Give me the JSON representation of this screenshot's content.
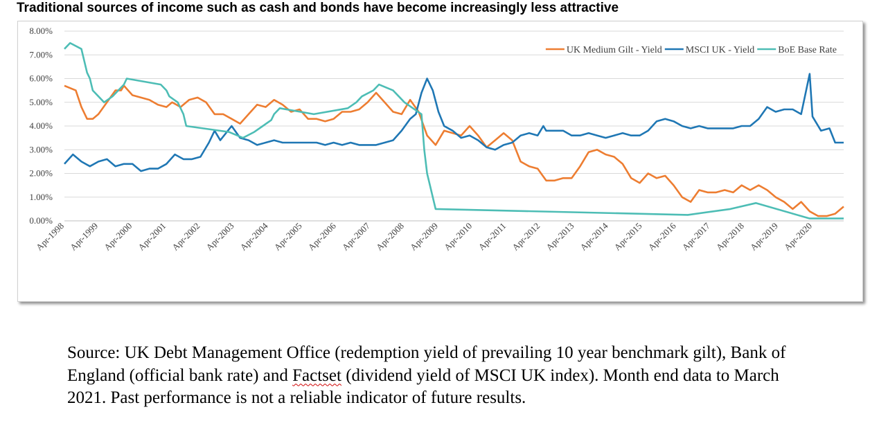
{
  "title": "Traditional sources of income such as cash and bonds have become increasingly less attractive",
  "source_note": {
    "before": "Source: UK Debt Management Office (redemption yield of prevailing 10 year benchmark gilt), Bank of England (official bank rate) and ",
    "flagged_word": "Factset",
    "after": " (dividend yield of MSCI UK index). Month end data to March 2021. Past performance is not a reliable indicator of future results."
  },
  "chart_data": {
    "type": "line",
    "title": "",
    "xlabel": "",
    "ylabel": "",
    "ylim": [
      0,
      8
    ],
    "y_ticks": [
      0,
      1,
      2,
      3,
      4,
      5,
      6,
      7,
      8
    ],
    "y_tick_labels": [
      "0.00%",
      "1.00%",
      "2.00%",
      "3.00%",
      "4.00%",
      "5.00%",
      "6.00%",
      "7.00%",
      "8.00%"
    ],
    "x_range": [
      "1998-04",
      "2021-03"
    ],
    "x_tick_labels": [
      "Apr-1998",
      "Apr-1999",
      "Apr-2000",
      "Apr-2001",
      "Apr-2002",
      "Apr-2003",
      "Apr-2004",
      "Apr-2005",
      "Apr-2006",
      "Apr-2007",
      "Apr-2008",
      "Apr-2009",
      "Apr-2010",
      "Apr-2011",
      "Apr-2012",
      "Apr-2013",
      "Apr-2014",
      "Apr-2015",
      "Apr-2016",
      "Apr-2017",
      "Apr-2018",
      "Apr-2019",
      "Apr-2020"
    ],
    "grid": "horizontal",
    "legend_position": "top-right",
    "series": [
      {
        "name": "UK Medium Gilt - Yield",
        "color": "#ED7D31",
        "points": [
          [
            "1998-04",
            5.7
          ],
          [
            "1998-06",
            5.6
          ],
          [
            "1998-08",
            5.5
          ],
          [
            "1998-10",
            4.8
          ],
          [
            "1998-12",
            4.3
          ],
          [
            "1999-02",
            4.3
          ],
          [
            "1999-04",
            4.5
          ],
          [
            "1999-07",
            5.0
          ],
          [
            "1999-10",
            5.5
          ],
          [
            "1999-12",
            5.5
          ],
          [
            "2000-01",
            5.7
          ],
          [
            "2000-04",
            5.3
          ],
          [
            "2000-07",
            5.2
          ],
          [
            "2000-10",
            5.1
          ],
          [
            "2001-01",
            4.9
          ],
          [
            "2001-04",
            4.8
          ],
          [
            "2001-06",
            5.0
          ],
          [
            "2001-09",
            4.8
          ],
          [
            "2001-12",
            5.1
          ],
          [
            "2002-03",
            5.2
          ],
          [
            "2002-06",
            5.0
          ],
          [
            "2002-09",
            4.5
          ],
          [
            "2002-12",
            4.5
          ],
          [
            "2003-03",
            4.3
          ],
          [
            "2003-06",
            4.1
          ],
          [
            "2003-09",
            4.5
          ],
          [
            "2003-12",
            4.9
          ],
          [
            "2004-03",
            4.8
          ],
          [
            "2004-06",
            5.1
          ],
          [
            "2004-09",
            4.9
          ],
          [
            "2004-12",
            4.6
          ],
          [
            "2005-03",
            4.7
          ],
          [
            "2005-06",
            4.3
          ],
          [
            "2005-09",
            4.3
          ],
          [
            "2005-12",
            4.2
          ],
          [
            "2006-03",
            4.3
          ],
          [
            "2006-06",
            4.6
          ],
          [
            "2006-09",
            4.6
          ],
          [
            "2006-12",
            4.7
          ],
          [
            "2007-03",
            5.0
          ],
          [
            "2007-06",
            5.4
          ],
          [
            "2007-09",
            5.0
          ],
          [
            "2007-12",
            4.6
          ],
          [
            "2008-03",
            4.5
          ],
          [
            "2008-06",
            5.1
          ],
          [
            "2008-09",
            4.6
          ],
          [
            "2008-12",
            3.6
          ],
          [
            "2009-03",
            3.2
          ],
          [
            "2009-06",
            3.8
          ],
          [
            "2009-09",
            3.7
          ],
          [
            "2009-12",
            3.6
          ],
          [
            "2010-03",
            4.0
          ],
          [
            "2010-06",
            3.6
          ],
          [
            "2010-09",
            3.1
          ],
          [
            "2010-12",
            3.4
          ],
          [
            "2011-03",
            3.7
          ],
          [
            "2011-06",
            3.4
          ],
          [
            "2011-09",
            2.5
          ],
          [
            "2011-12",
            2.3
          ],
          [
            "2012-03",
            2.2
          ],
          [
            "2012-06",
            1.7
          ],
          [
            "2012-09",
            1.7
          ],
          [
            "2012-12",
            1.8
          ],
          [
            "2013-03",
            1.8
          ],
          [
            "2013-06",
            2.3
          ],
          [
            "2013-09",
            2.9
          ],
          [
            "2013-12",
            3.0
          ],
          [
            "2014-03",
            2.8
          ],
          [
            "2014-06",
            2.7
          ],
          [
            "2014-09",
            2.4
          ],
          [
            "2014-12",
            1.8
          ],
          [
            "2015-03",
            1.6
          ],
          [
            "2015-06",
            2.0
          ],
          [
            "2015-09",
            1.8
          ],
          [
            "2015-12",
            1.9
          ],
          [
            "2016-03",
            1.5
          ],
          [
            "2016-06",
            1.0
          ],
          [
            "2016-09",
            0.8
          ],
          [
            "2016-12",
            1.3
          ],
          [
            "2017-03",
            1.2
          ],
          [
            "2017-06",
            1.2
          ],
          [
            "2017-09",
            1.3
          ],
          [
            "2017-12",
            1.2
          ],
          [
            "2018-03",
            1.5
          ],
          [
            "2018-06",
            1.3
          ],
          [
            "2018-09",
            1.5
          ],
          [
            "2018-12",
            1.3
          ],
          [
            "2019-03",
            1.0
          ],
          [
            "2019-06",
            0.8
          ],
          [
            "2019-09",
            0.5
          ],
          [
            "2019-12",
            0.8
          ],
          [
            "2020-03",
            0.4
          ],
          [
            "2020-06",
            0.2
          ],
          [
            "2020-09",
            0.2
          ],
          [
            "2020-12",
            0.3
          ],
          [
            "2021-03",
            0.6
          ]
        ]
      },
      {
        "name": "MSCI UK - Yield",
        "color": "#1F77B4",
        "points": [
          [
            "1998-04",
            2.4
          ],
          [
            "1998-07",
            2.8
          ],
          [
            "1998-10",
            2.5
          ],
          [
            "1999-01",
            2.3
          ],
          [
            "1999-04",
            2.5
          ],
          [
            "1999-07",
            2.6
          ],
          [
            "1999-10",
            2.3
          ],
          [
            "2000-01",
            2.4
          ],
          [
            "2000-04",
            2.4
          ],
          [
            "2000-07",
            2.1
          ],
          [
            "2000-10",
            2.2
          ],
          [
            "2001-01",
            2.2
          ],
          [
            "2001-04",
            2.4
          ],
          [
            "2001-07",
            2.8
          ],
          [
            "2001-10",
            2.6
          ],
          [
            "2002-01",
            2.6
          ],
          [
            "2002-04",
            2.7
          ],
          [
            "2002-07",
            3.3
          ],
          [
            "2002-09",
            3.8
          ],
          [
            "2002-11",
            3.4
          ],
          [
            "2003-03",
            4.0
          ],
          [
            "2003-06",
            3.5
          ],
          [
            "2003-09",
            3.4
          ],
          [
            "2003-12",
            3.2
          ],
          [
            "2004-03",
            3.3
          ],
          [
            "2004-06",
            3.4
          ],
          [
            "2004-09",
            3.3
          ],
          [
            "2004-12",
            3.3
          ],
          [
            "2005-03",
            3.3
          ],
          [
            "2005-06",
            3.3
          ],
          [
            "2005-09",
            3.3
          ],
          [
            "2005-12",
            3.2
          ],
          [
            "2006-03",
            3.3
          ],
          [
            "2006-06",
            3.2
          ],
          [
            "2006-09",
            3.3
          ],
          [
            "2006-12",
            3.2
          ],
          [
            "2007-03",
            3.2
          ],
          [
            "2007-06",
            3.2
          ],
          [
            "2007-09",
            3.3
          ],
          [
            "2007-12",
            3.4
          ],
          [
            "2008-03",
            3.8
          ],
          [
            "2008-06",
            4.3
          ],
          [
            "2008-08",
            4.5
          ],
          [
            "2008-10",
            5.4
          ],
          [
            "2008-12",
            6.0
          ],
          [
            "2009-02",
            5.5
          ],
          [
            "2009-04",
            4.6
          ],
          [
            "2009-06",
            4.0
          ],
          [
            "2009-09",
            3.8
          ],
          [
            "2009-12",
            3.5
          ],
          [
            "2010-03",
            3.6
          ],
          [
            "2010-06",
            3.4
          ],
          [
            "2010-09",
            3.1
          ],
          [
            "2010-12",
            3.0
          ],
          [
            "2011-03",
            3.2
          ],
          [
            "2011-06",
            3.3
          ],
          [
            "2011-09",
            3.6
          ],
          [
            "2011-12",
            3.7
          ],
          [
            "2012-03",
            3.6
          ],
          [
            "2012-05",
            4.0
          ],
          [
            "2012-06",
            3.8
          ],
          [
            "2012-09",
            3.8
          ],
          [
            "2012-12",
            3.8
          ],
          [
            "2013-03",
            3.6
          ],
          [
            "2013-06",
            3.6
          ],
          [
            "2013-09",
            3.7
          ],
          [
            "2013-12",
            3.6
          ],
          [
            "2014-03",
            3.5
          ],
          [
            "2014-06",
            3.6
          ],
          [
            "2014-09",
            3.7
          ],
          [
            "2014-12",
            3.6
          ],
          [
            "2015-03",
            3.6
          ],
          [
            "2015-06",
            3.8
          ],
          [
            "2015-09",
            4.2
          ],
          [
            "2015-12",
            4.3
          ],
          [
            "2016-03",
            4.2
          ],
          [
            "2016-06",
            4.0
          ],
          [
            "2016-09",
            3.9
          ],
          [
            "2016-12",
            4.0
          ],
          [
            "2017-03",
            3.9
          ],
          [
            "2017-06",
            3.9
          ],
          [
            "2017-09",
            3.9
          ],
          [
            "2017-12",
            3.9
          ],
          [
            "2018-03",
            4.0
          ],
          [
            "2018-06",
            4.0
          ],
          [
            "2018-09",
            4.3
          ],
          [
            "2018-12",
            4.8
          ],
          [
            "2019-03",
            4.6
          ],
          [
            "2019-06",
            4.7
          ],
          [
            "2019-09",
            4.7
          ],
          [
            "2019-12",
            4.5
          ],
          [
            "2020-03",
            6.2
          ],
          [
            "2020-04",
            4.4
          ],
          [
            "2020-07",
            3.8
          ],
          [
            "2020-10",
            3.9
          ],
          [
            "2020-12",
            3.3
          ],
          [
            "2021-03",
            3.3
          ]
        ]
      },
      {
        "name": "BoE Base Rate",
        "color": "#4DBDB5",
        "points": [
          [
            "1998-04",
            7.25
          ],
          [
            "1998-06",
            7.5
          ],
          [
            "1998-10",
            7.25
          ],
          [
            "1998-11",
            6.75
          ],
          [
            "1998-12",
            6.25
          ],
          [
            "1999-01",
            6.0
          ],
          [
            "1999-02",
            5.5
          ],
          [
            "1999-04",
            5.25
          ],
          [
            "1999-06",
            5.0
          ],
          [
            "1999-09",
            5.25
          ],
          [
            "1999-11",
            5.5
          ],
          [
            "2000-01",
            5.75
          ],
          [
            "2000-02",
            6.0
          ],
          [
            "2001-02",
            5.75
          ],
          [
            "2001-04",
            5.5
          ],
          [
            "2001-05",
            5.25
          ],
          [
            "2001-08",
            5.0
          ],
          [
            "2001-09",
            4.75
          ],
          [
            "2001-10",
            4.5
          ],
          [
            "2001-11",
            4.0
          ],
          [
            "2003-02",
            3.75
          ],
          [
            "2003-07",
            3.5
          ],
          [
            "2003-11",
            3.75
          ],
          [
            "2004-02",
            4.0
          ],
          [
            "2004-05",
            4.25
          ],
          [
            "2004-06",
            4.5
          ],
          [
            "2004-08",
            4.75
          ],
          [
            "2005-08",
            4.5
          ],
          [
            "2006-08",
            4.75
          ],
          [
            "2006-11",
            5.0
          ],
          [
            "2007-01",
            5.25
          ],
          [
            "2007-05",
            5.5
          ],
          [
            "2007-07",
            5.75
          ],
          [
            "2007-12",
            5.5
          ],
          [
            "2008-02",
            5.25
          ],
          [
            "2008-04",
            5.0
          ],
          [
            "2008-10",
            4.5
          ],
          [
            "2008-11",
            3.0
          ],
          [
            "2008-12",
            2.0
          ],
          [
            "2009-01",
            1.5
          ],
          [
            "2009-02",
            1.0
          ],
          [
            "2009-03",
            0.5
          ],
          [
            "2016-08",
            0.25
          ],
          [
            "2017-11",
            0.5
          ],
          [
            "2018-08",
            0.75
          ],
          [
            "2020-03",
            0.1
          ],
          [
            "2021-03",
            0.1
          ]
        ]
      }
    ]
  }
}
